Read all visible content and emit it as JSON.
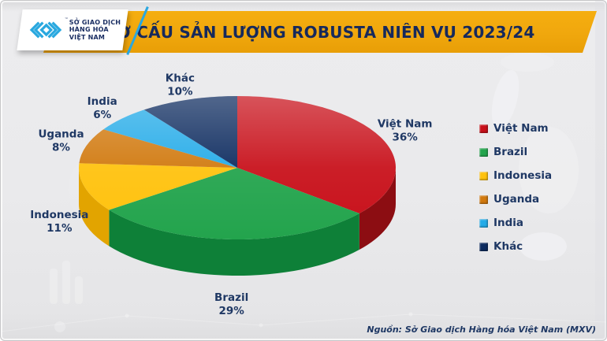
{
  "header": {
    "title": "CƠ CẤU SẢN LƯỢNG ROBUSTA NIÊN VỤ 2023/24"
  },
  "logo": {
    "name_lines": [
      "SỞ GIAO DỊCH",
      "HÀNG HÓA",
      "VIỆT NAM"
    ],
    "tm": "™"
  },
  "footer": {
    "source": "Nguồn: Sở Giao dịch Hàng hóa Việt Nam (MXV)"
  },
  "colors": {
    "banner": "#F0A70D",
    "title_text": "#16295C",
    "label_text": "#1F3864",
    "background": "#EAEAEC",
    "logo_mark": "#29A8DF"
  },
  "chart_data": {
    "type": "pie",
    "style": "3d",
    "title": "CƠ CẤU SẢN LƯỢNG ROBUSTA NIÊN VỤ 2023/24",
    "unit": "%",
    "start_angle_deg": 0,
    "direction": "clockwise",
    "legend_position": "right",
    "slices": [
      {
        "label": "Việt Nam",
        "value": 36,
        "color": "#C8101A",
        "dark": "#8C0D12"
      },
      {
        "label": "Brazil",
        "value": 29,
        "color": "#23A44D",
        "dark": "#0E8038"
      },
      {
        "label": "Indonesia",
        "value": 11,
        "color": "#FFC20D",
        "dark": "#E2A400"
      },
      {
        "label": "Uganda",
        "value": 8,
        "color": "#D1790E",
        "dark": "#A55D07"
      },
      {
        "label": "India",
        "value": 6,
        "color": "#24ABE8",
        "dark": "#1782B3"
      },
      {
        "label": "Khác",
        "value": 10,
        "color": "#0D2B5F",
        "dark": "#081C40"
      }
    ]
  }
}
